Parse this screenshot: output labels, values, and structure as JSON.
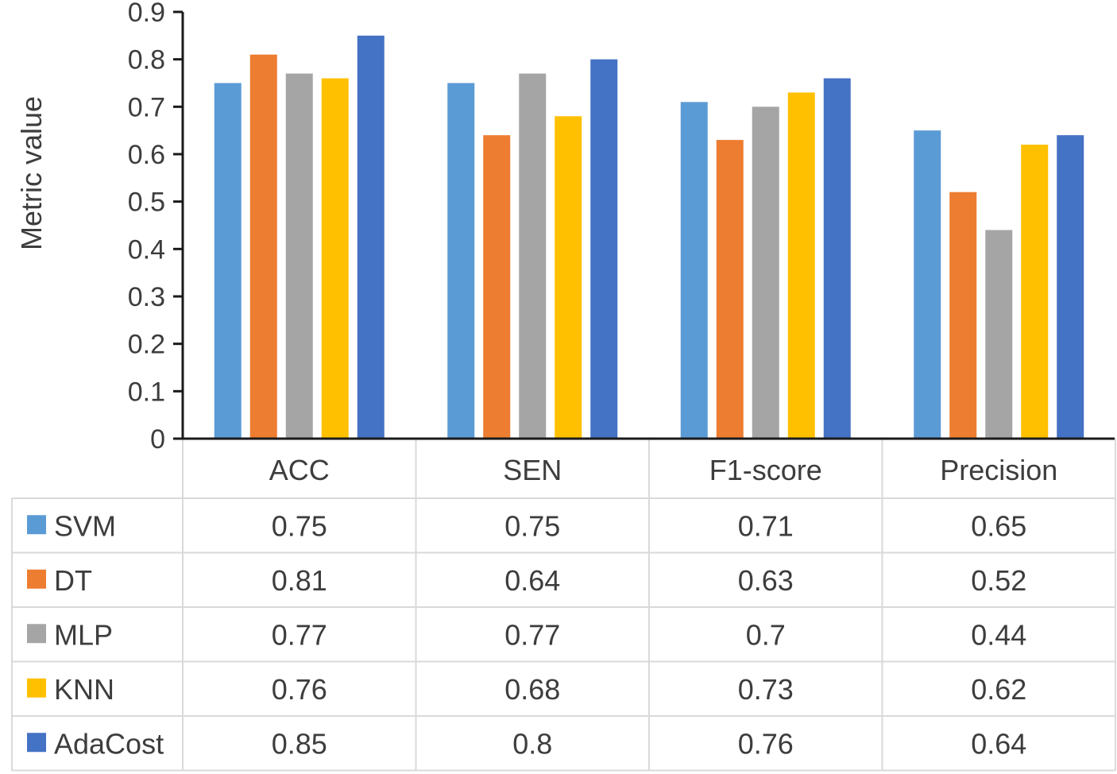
{
  "chart_data": {
    "type": "bar",
    "title": "",
    "xlabel": "",
    "ylabel": "Metric value",
    "ylim": [
      0,
      0.9
    ],
    "yticks": [
      0,
      0.1,
      0.2,
      0.3,
      0.4,
      0.5,
      0.6,
      0.7,
      0.8,
      0.9
    ],
    "ytick_labels": [
      "0",
      "0.1",
      "0.2",
      "0.3",
      "0.4",
      "0.5",
      "0.6",
      "0.7",
      "0.8",
      "0.9"
    ],
    "legend": "data-table-below",
    "grid": false,
    "categories": [
      "ACC",
      "SEN",
      "F1-score",
      "Precision"
    ],
    "series": [
      {
        "name": "SVM",
        "color": "#5B9BD5",
        "values": [
          0.75,
          0.75,
          0.71,
          0.65
        ],
        "labels": [
          "0.75",
          "0.75",
          "0.71",
          "0.65"
        ]
      },
      {
        "name": "DT",
        "color": "#ED7D31",
        "values": [
          0.81,
          0.64,
          0.63,
          0.52
        ],
        "labels": [
          "0.81",
          "0.64",
          "0.63",
          "0.52"
        ]
      },
      {
        "name": "MLP",
        "color": "#A5A5A5",
        "values": [
          0.77,
          0.77,
          0.7,
          0.44
        ],
        "labels": [
          "0.77",
          "0.77",
          "0.7",
          "0.44"
        ]
      },
      {
        "name": "KNN",
        "color": "#FFC000",
        "values": [
          0.76,
          0.68,
          0.73,
          0.62
        ],
        "labels": [
          "0.76",
          "0.68",
          "0.73",
          "0.62"
        ]
      },
      {
        "name": "AdaCost",
        "color": "#4472C4",
        "values": [
          0.85,
          0.8,
          0.76,
          0.64
        ],
        "labels": [
          "0.85",
          "0.8",
          "0.76",
          "0.64"
        ]
      }
    ]
  }
}
